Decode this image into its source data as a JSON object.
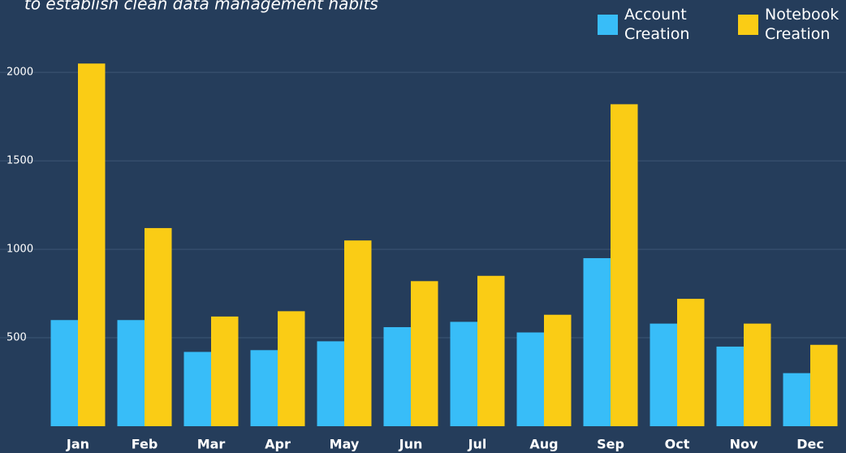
{
  "chart_data": {
    "type": "bar",
    "subtitle": "to establish clean data management habits",
    "categories": [
      "Jan",
      "Feb",
      "Mar",
      "Apr",
      "May",
      "Jun",
      "Jul",
      "Aug",
      "Sep",
      "Oct",
      "Nov",
      "Dec"
    ],
    "series": [
      {
        "name": "Account Creation",
        "color": "#38bdf8",
        "values": [
          600,
          600,
          420,
          430,
          480,
          560,
          590,
          530,
          950,
          580,
          450,
          300
        ]
      },
      {
        "name": "Notebook Creation",
        "color": "#facc15",
        "values": [
          2050,
          1120,
          620,
          650,
          1050,
          820,
          850,
          630,
          1820,
          720,
          580,
          460
        ]
      }
    ],
    "ylim": [
      0,
      2400
    ],
    "yticks": [
      500,
      1000,
      1500,
      2000
    ],
    "grid": true,
    "legend": "upper right"
  }
}
